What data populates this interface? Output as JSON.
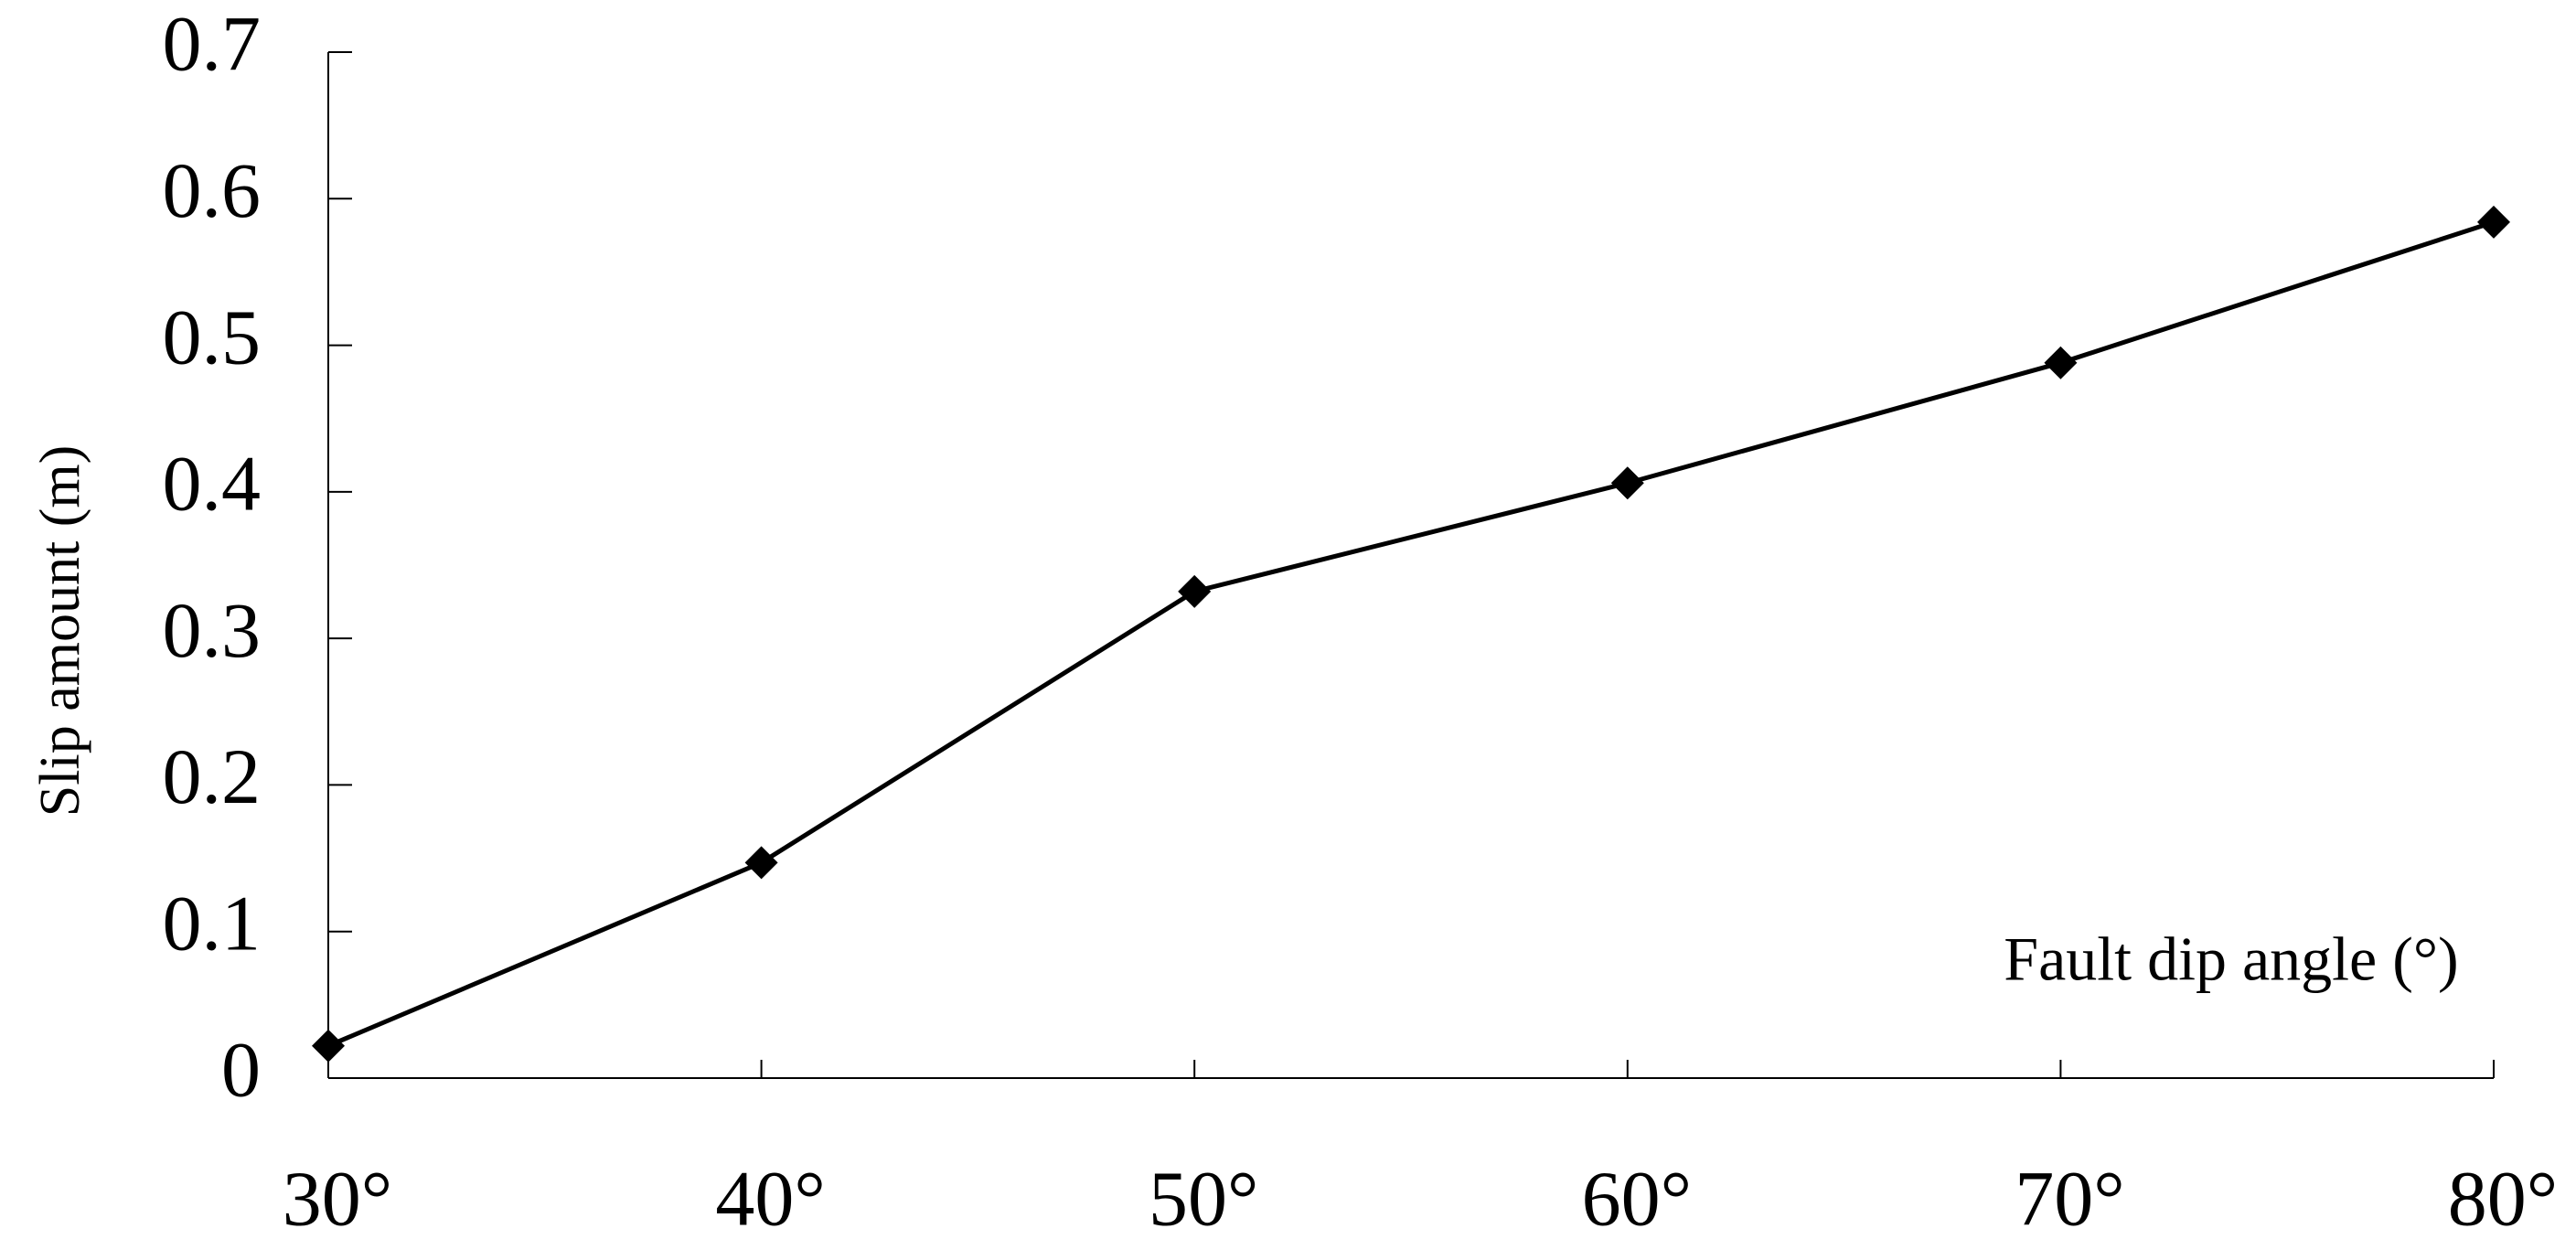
{
  "chart_data": {
    "type": "line",
    "y_label": "Slip amount (m)",
    "annotation": "Fault dip angle (°)",
    "categories": [
      "30°",
      "40°",
      "50°",
      "60°",
      "70°",
      "80°"
    ],
    "series": [
      {
        "name": "Slip amount",
        "color": "#000000",
        "values": [
          0.022,
          0.147,
          0.332,
          0.406,
          0.488,
          0.584
        ]
      }
    ],
    "ylim": [
      0,
      0.7
    ],
    "yticks": [
      0,
      0.1,
      0.2,
      0.3,
      0.4,
      0.5,
      0.6,
      0.7
    ],
    "grid": false
  }
}
